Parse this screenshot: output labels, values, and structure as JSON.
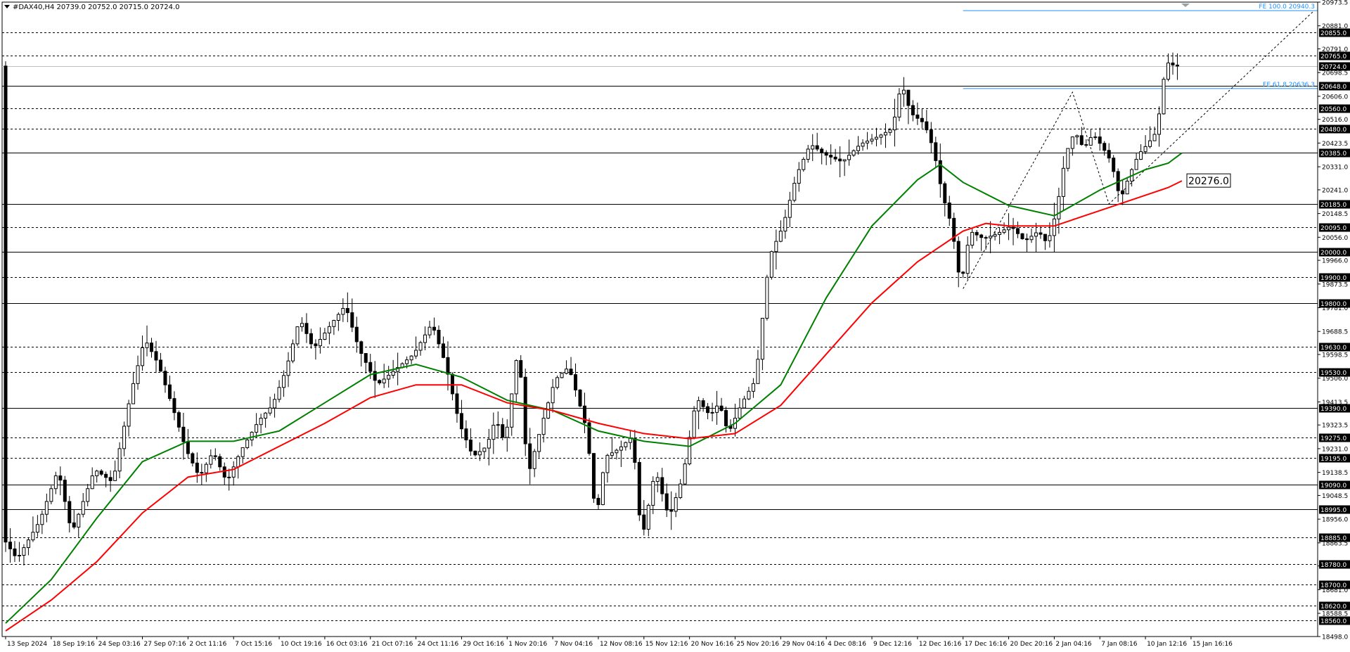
{
  "header": {
    "symbol_line": "#DAX40,H4  20739.0 20752.0 20715.0 20724.0"
  },
  "colors": {
    "background": "#ffffff",
    "grid_solid": "#000000",
    "grid_dashed": "#000000",
    "ma_fast": "#008000",
    "ma_slow": "#ff0000",
    "fib": "#1e90ff",
    "candle": "#000000",
    "price_tag_bg": "#000000",
    "price_tag_text": "#ffffff"
  },
  "chart_data": {
    "type": "candlestick",
    "symbol": "#DAX40",
    "timeframe": "H4",
    "ylim": [
      18498.0,
      20973.5
    ],
    "x_range": [
      0,
      287
    ],
    "x_ticks": [
      {
        "x": 0,
        "label": "13 Sep 2024"
      },
      {
        "x": 10,
        "label": "18 Sep 19:16"
      },
      {
        "x": 20,
        "label": "24 Sep 03:16"
      },
      {
        "x": 30,
        "label": "27 Sep 07:16"
      },
      {
        "x": 40,
        "label": "2 Oct 11:16"
      },
      {
        "x": 50,
        "label": "7 Oct 15:16"
      },
      {
        "x": 60,
        "label": "10 Oct 19:16"
      },
      {
        "x": 70,
        "label": "16 Oct 03:16"
      },
      {
        "x": 80,
        "label": "21 Oct 07:16"
      },
      {
        "x": 90,
        "label": "24 Oct 11:16"
      },
      {
        "x": 100,
        "label": "29 Oct 16:16"
      },
      {
        "x": 110,
        "label": "1 Nov 20:16"
      },
      {
        "x": 120,
        "label": "7 Nov 04:16"
      },
      {
        "x": 130,
        "label": "12 Nov 08:16"
      },
      {
        "x": 140,
        "label": "15 Nov 12:16"
      },
      {
        "x": 150,
        "label": "20 Nov 16:16"
      },
      {
        "x": 160,
        "label": "25 Nov 20:16"
      },
      {
        "x": 170,
        "label": "29 Nov 04:16"
      },
      {
        "x": 180,
        "label": "4 Dec 08:16"
      },
      {
        "x": 190,
        "label": "9 Dec 12:16"
      },
      {
        "x": 200,
        "label": "12 Dec 16:16"
      },
      {
        "x": 210,
        "label": "17 Dec 16:16"
      },
      {
        "x": 220,
        "label": "20 Dec 20:16"
      },
      {
        "x": 230,
        "label": "2 Jan 04:16"
      },
      {
        "x": 240,
        "label": "7 Jan 08:16"
      },
      {
        "x": 250,
        "label": "10 Jan 12:16"
      },
      {
        "x": 260,
        "label": "15 Jan 16:16"
      }
    ],
    "y_ticks": [
      "20973.5",
      "20881.0",
      "20791.0",
      "20698.5",
      "20606.0",
      "20516.0",
      "20423.5",
      "20331.0",
      "20241.0",
      "20148.5",
      "20056.0",
      "19966.0",
      "19873.5",
      "19781.0",
      "19688.5",
      "19598.5",
      "19506.0",
      "19413.5",
      "19323.5",
      "19231.0",
      "19138.5",
      "19048.5",
      "18956.0",
      "18863.5",
      "18773.5",
      "18681.0",
      "18588.5",
      "18498.0"
    ],
    "levels": [
      {
        "value": 20855.0,
        "style": "dashed"
      },
      {
        "value": 20765.0,
        "style": "dashed"
      },
      {
        "value": 20724.0,
        "style": "current"
      },
      {
        "value": 20648.0,
        "style": "solid"
      },
      {
        "value": 20560.0,
        "style": "dashed"
      },
      {
        "value": 20480.0,
        "style": "dashed"
      },
      {
        "value": 20385.0,
        "style": "solid"
      },
      {
        "value": 20185.0,
        "style": "solid"
      },
      {
        "value": 20095.0,
        "style": "dashed"
      },
      {
        "value": 20000.0,
        "style": "solid"
      },
      {
        "value": 19900.0,
        "style": "dashed"
      },
      {
        "value": 19800.0,
        "style": "solid"
      },
      {
        "value": 19630.0,
        "style": "dashed"
      },
      {
        "value": 19530.0,
        "style": "dashed"
      },
      {
        "value": 19390.0,
        "style": "solid"
      },
      {
        "value": 19275.0,
        "style": "dashed"
      },
      {
        "value": 19195.0,
        "style": "dashed"
      },
      {
        "value": 19090.0,
        "style": "solid"
      },
      {
        "value": 18995.0,
        "style": "solid"
      },
      {
        "value": 18885.0,
        "style": "dashed"
      },
      {
        "value": 18780.0,
        "style": "dashed"
      },
      {
        "value": 18700.0,
        "style": "dashed"
      },
      {
        "value": 18620.0,
        "style": "dashed"
      },
      {
        "value": 18560.0,
        "style": "dashed"
      }
    ],
    "level_labels": [
      "20855.0",
      "20765.0",
      "20724.0",
      "20648.0",
      "20560.0",
      "20480.0",
      "20385.0",
      "20185.0",
      "20095.0",
      "20000.0",
      "19900.0",
      "19800.0",
      "19630.0",
      "19530.0",
      "19390.0",
      "19275.0",
      "19195.0",
      "19090.0",
      "18995.0",
      "18885.0",
      "18780.0",
      "18700.0",
      "18620.0",
      "18560.0"
    ],
    "fib_lines": [
      {
        "label": "FE 100.0 20940.3",
        "value": 20940.3,
        "x_start": 210,
        "x_end": 287
      },
      {
        "label": "FE 61.8 20636.3",
        "value": 20636.3,
        "x_start": 210,
        "x_end": 287
      }
    ],
    "zigzag": [
      [
        210,
        19855
      ],
      [
        234,
        20622
      ],
      [
        242,
        20186
      ],
      [
        287,
        20940.3
      ]
    ],
    "ma_label": "20276.0",
    "ma_label_value": 20276.0,
    "path_points": [
      [
        0,
        18880
      ],
      [
        3,
        18800
      ],
      [
        8,
        18950
      ],
      [
        12,
        19150
      ],
      [
        15,
        18900
      ],
      [
        20,
        19150
      ],
      [
        24,
        19100
      ],
      [
        28,
        19450
      ],
      [
        31,
        19660
      ],
      [
        34,
        19560
      ],
      [
        37,
        19400
      ],
      [
        40,
        19230
      ],
      [
        43,
        19120
      ],
      [
        46,
        19220
      ],
      [
        49,
        19100
      ],
      [
        52,
        19220
      ],
      [
        56,
        19340
      ],
      [
        59,
        19400
      ],
      [
        62,
        19540
      ],
      [
        65,
        19740
      ],
      [
        68,
        19620
      ],
      [
        72,
        19720
      ],
      [
        75,
        19790
      ],
      [
        78,
        19620
      ],
      [
        82,
        19480
      ],
      [
        86,
        19540
      ],
      [
        90,
        19600
      ],
      [
        94,
        19720
      ],
      [
        97,
        19560
      ],
      [
        100,
        19330
      ],
      [
        103,
        19200
      ],
      [
        106,
        19240
      ],
      [
        108,
        19350
      ],
      [
        110,
        19250
      ],
      [
        113,
        19640
      ],
      [
        115,
        19120
      ],
      [
        118,
        19320
      ],
      [
        121,
        19500
      ],
      [
        124,
        19550
      ],
      [
        126,
        19430
      ],
      [
        128,
        19300
      ],
      [
        130,
        18950
      ],
      [
        132,
        19200
      ],
      [
        135,
        19230
      ],
      [
        138,
        19280
      ],
      [
        140,
        18870
      ],
      [
        143,
        19150
      ],
      [
        146,
        18960
      ],
      [
        149,
        19120
      ],
      [
        152,
        19430
      ],
      [
        155,
        19360
      ],
      [
        157,
        19410
      ],
      [
        159,
        19290
      ],
      [
        162,
        19410
      ],
      [
        165,
        19500
      ],
      [
        168,
        19980
      ],
      [
        171,
        20100
      ],
      [
        174,
        20300
      ],
      [
        177,
        20420
      ],
      [
        180,
        20380
      ],
      [
        184,
        20350
      ],
      [
        188,
        20420
      ],
      [
        192,
        20450
      ],
      [
        195,
        20480
      ],
      [
        197,
        20660
      ],
      [
        199,
        20540
      ],
      [
        202,
        20500
      ],
      [
        204,
        20400
      ],
      [
        206,
        20220
      ],
      [
        208,
        20100
      ],
      [
        210,
        19860
      ],
      [
        212,
        20080
      ],
      [
        215,
        20050
      ],
      [
        218,
        20070
      ],
      [
        221,
        20100
      ],
      [
        224,
        20040
      ],
      [
        227,
        20080
      ],
      [
        229,
        20030
      ],
      [
        231,
        20160
      ],
      [
        233,
        20380
      ],
      [
        235,
        20470
      ],
      [
        237,
        20400
      ],
      [
        239,
        20460
      ],
      [
        241,
        20410
      ],
      [
        243,
        20350
      ],
      [
        245,
        20200
      ],
      [
        247,
        20300
      ],
      [
        249,
        20380
      ],
      [
        251,
        20420
      ],
      [
        253,
        20470
      ],
      [
        255,
        20740
      ],
      [
        257,
        20724
      ]
    ],
    "ma_fast_points": [
      [
        0,
        18550
      ],
      [
        10,
        18720
      ],
      [
        20,
        18960
      ],
      [
        30,
        19180
      ],
      [
        40,
        19260
      ],
      [
        50,
        19260
      ],
      [
        60,
        19300
      ],
      [
        70,
        19410
      ],
      [
        80,
        19520
      ],
      [
        90,
        19560
      ],
      [
        100,
        19510
      ],
      [
        110,
        19420
      ],
      [
        120,
        19380
      ],
      [
        130,
        19300
      ],
      [
        140,
        19260
      ],
      [
        150,
        19240
      ],
      [
        160,
        19330
      ],
      [
        170,
        19480
      ],
      [
        180,
        19820
      ],
      [
        190,
        20100
      ],
      [
        200,
        20280
      ],
      [
        205,
        20340
      ],
      [
        210,
        20270
      ],
      [
        220,
        20180
      ],
      [
        230,
        20140
      ],
      [
        240,
        20240
      ],
      [
        250,
        20320
      ],
      [
        255,
        20345
      ],
      [
        258,
        20385
      ]
    ],
    "ma_slow_points": [
      [
        0,
        18520
      ],
      [
        10,
        18640
      ],
      [
        20,
        18790
      ],
      [
        30,
        18980
      ],
      [
        40,
        19120
      ],
      [
        50,
        19150
      ],
      [
        60,
        19240
      ],
      [
        70,
        19330
      ],
      [
        80,
        19430
      ],
      [
        90,
        19480
      ],
      [
        100,
        19480
      ],
      [
        110,
        19410
      ],
      [
        120,
        19380
      ],
      [
        130,
        19330
      ],
      [
        140,
        19290
      ],
      [
        150,
        19270
      ],
      [
        160,
        19290
      ],
      [
        170,
        19400
      ],
      [
        180,
        19600
      ],
      [
        190,
        19800
      ],
      [
        200,
        19960
      ],
      [
        210,
        20080
      ],
      [
        215,
        20110
      ],
      [
        220,
        20100
      ],
      [
        230,
        20100
      ],
      [
        240,
        20160
      ],
      [
        250,
        20220
      ],
      [
        255,
        20250
      ],
      [
        258,
        20276
      ]
    ]
  }
}
